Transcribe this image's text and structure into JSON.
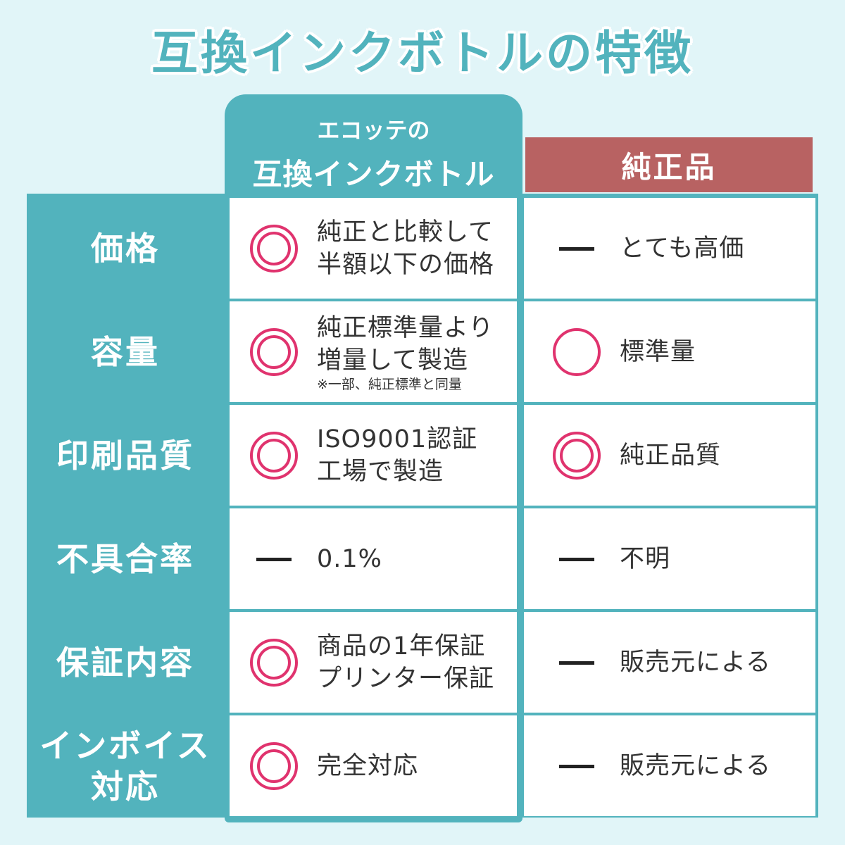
{
  "title": "互換インクボトルの特徴",
  "headers": {
    "ecotte_line1": "エコッテの",
    "ecotte_line2": "互換インクボトル",
    "genuine": "純正品"
  },
  "colors": {
    "teal": "#52b3bd",
    "genuine_red": "#b86262",
    "mark_pink": "#e0336e",
    "background": "#e1f5f8"
  },
  "rows": [
    {
      "label": "価格",
      "eco_mark": "double-circle",
      "eco_text": [
        "純正と比較して",
        "半額以下の価格"
      ],
      "gen_mark": "dash",
      "gen_text": [
        "とても高価"
      ]
    },
    {
      "label": "容量",
      "eco_mark": "double-circle",
      "eco_text": [
        "純正標準量より",
        "増量して製造"
      ],
      "eco_note": "※一部、純正標準と同量",
      "gen_mark": "circle",
      "gen_text": [
        "標準量"
      ]
    },
    {
      "label": "印刷品質",
      "eco_mark": "double-circle",
      "eco_text": [
        "ISO9001認証",
        "工場で製造"
      ],
      "gen_mark": "double-circle",
      "gen_text": [
        "純正品質"
      ]
    },
    {
      "label": "不具合率",
      "eco_mark": "dash",
      "eco_text": [
        "0.1%"
      ],
      "gen_mark": "dash",
      "gen_text": [
        "不明"
      ]
    },
    {
      "label": "保証内容",
      "eco_mark": "double-circle",
      "eco_text": [
        "商品の1年保証",
        "プリンター保証"
      ],
      "gen_mark": "dash",
      "gen_text": [
        "販売元による"
      ]
    },
    {
      "label": "インボイス\n対応",
      "eco_mark": "double-circle",
      "eco_text": [
        "完全対応"
      ],
      "gen_mark": "dash",
      "gen_text": [
        "販売元による"
      ]
    }
  ]
}
